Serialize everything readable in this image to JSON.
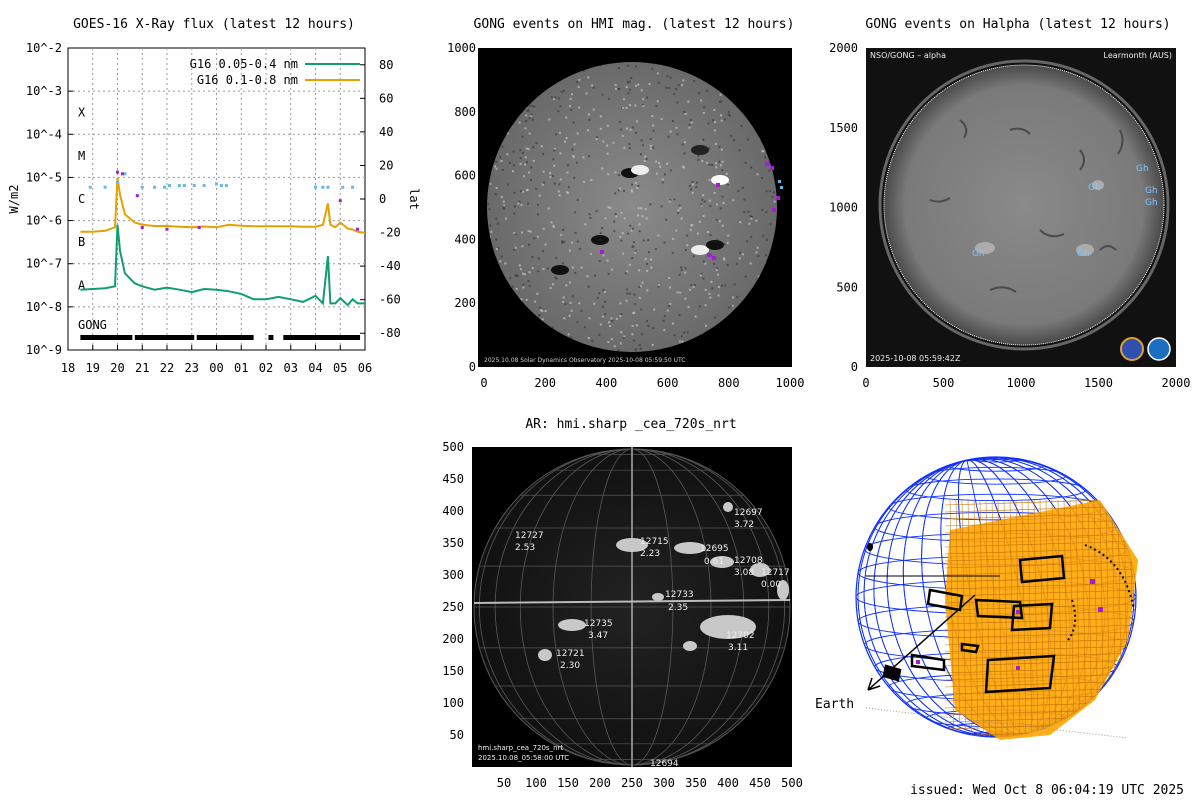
{
  "issued": "issued: Wed Oct  8 06:04:19 UTC 2025",
  "colors": {
    "series1": "#109e70",
    "series2": "#e8a000",
    "event_cyan": "#66b8e8",
    "event_purple": "#a020d0",
    "grid_sphere": "#1030ff",
    "patch": "#ffa500"
  },
  "xray": {
    "title": "GOES-16 X-Ray flux (latest 12 hours)",
    "ylabel": "W/m2",
    "y2label": "lat",
    "flare_classes": [
      "X",
      "M",
      "C",
      "B",
      "A"
    ],
    "gong_label": "GONG",
    "legend": [
      "G16 0.05-0.4 nm",
      "G16 0.1-0.8 nm"
    ]
  },
  "hmi": {
    "title": "GONG events on HMI mag. (latest 12 hours)",
    "caption": "2025.10.08 Solar Dynamics Observatory  2025-10-08 05:59:50 UTC"
  },
  "halpha": {
    "title": "GONG events on Halpha (latest 12 hours)",
    "header_left": "NSO/GONG – alpha",
    "header_right": "Learmonth (AUS)",
    "footer": "2025-10-08 05:59:42Z",
    "labels": [
      "Gh",
      "Gh",
      "Gh",
      "Gh",
      "Gh",
      "Gh"
    ]
  },
  "ar": {
    "title": "AR: hmi.sharp _cea_720s_nrt",
    "caption1": "hmi.sharp_cea_720s_nrt",
    "caption2": "2025.10.08_05:58:00 UTC",
    "regions": [
      {
        "num": "12727",
        "val": "2.53"
      },
      {
        "num": "12715",
        "val": "2.23"
      },
      {
        "num": "12695",
        "val": "0.61"
      },
      {
        "num": "12708",
        "val": "3.08"
      },
      {
        "num": "12717",
        "val": "0.00"
      },
      {
        "num": "12697",
        "val": "3.72"
      },
      {
        "num": "12733",
        "val": "2.35"
      },
      {
        "num": "12735",
        "val": "3.47"
      },
      {
        "num": "12721",
        "val": "2.30"
      },
      {
        "num": "12702",
        "val": "3.11"
      },
      {
        "num": "12694",
        "val": ""
      }
    ]
  },
  "sphere": {
    "earth_label": "Earth"
  },
  "chart_data": [
    {
      "type": "line",
      "title": "GOES-16 X-Ray flux (latest 12 hours)",
      "ylabel": "W/m2",
      "y_scale": "log",
      "ylim": [
        1e-09,
        0.01
      ],
      "y_ticks": [
        "10^-9",
        "10^-8",
        "10^-7",
        "10^-6",
        "10^-5",
        "10^-4",
        "10^-3",
        "10^-2"
      ],
      "y2label": "lat",
      "y2lim": [
        -90,
        90
      ],
      "y2_ticks": [
        -80,
        -60,
        -40,
        -20,
        0,
        20,
        40,
        60,
        80
      ],
      "x_ticks": [
        "18",
        "19",
        "20",
        "21",
        "22",
        "23",
        "00",
        "01",
        "02",
        "03",
        "04",
        "05",
        "06"
      ],
      "legend": "top-right",
      "grid": true,
      "series": [
        {
          "name": "G16 0.05-0.4 nm",
          "x": [
            18.5,
            19.0,
            19.5,
            19.9,
            20.0,
            20.1,
            20.3,
            20.7,
            21.0,
            21.5,
            22.0,
            22.5,
            23.0,
            23.5,
            24.0,
            24.5,
            25.0,
            25.5,
            26.0,
            26.5,
            27.0,
            27.5,
            28.0,
            28.3,
            28.5,
            28.6,
            28.8,
            29.0,
            29.3,
            29.5,
            29.7,
            30.0
          ],
          "y": [
            2.5e-08,
            2.6e-08,
            2.7e-08,
            3e-08,
            8e-07,
            2e-07,
            6e-08,
            3.5e-08,
            3e-08,
            2.5e-08,
            2.8e-08,
            2.5e-08,
            2.2e-08,
            2.6e-08,
            2.5e-08,
            2.3e-08,
            2e-08,
            1.5e-08,
            1.5e-08,
            1.7e-08,
            1.5e-08,
            1.3e-08,
            1.8e-08,
            1.2e-08,
            1.5e-07,
            1.2e-08,
            1.2e-08,
            1.6e-08,
            1.1e-08,
            1.5e-08,
            1.2e-08,
            1.2e-08
          ]
        },
        {
          "name": "G16 0.1-0.8 nm",
          "x": [
            18.5,
            19.0,
            19.5,
            19.9,
            20.0,
            20.1,
            20.3,
            20.7,
            21.0,
            21.5,
            22.0,
            22.5,
            23.0,
            23.5,
            24.0,
            24.5,
            25.0,
            25.5,
            26.0,
            26.5,
            27.0,
            27.5,
            28.0,
            28.3,
            28.5,
            28.6,
            28.8,
            29.0,
            29.3,
            29.5,
            29.7,
            30.0
          ],
          "y": [
            5.5e-07,
            5.5e-07,
            5.8e-07,
            7e-07,
            1e-05,
            4e-06,
            1.4e-06,
            9e-07,
            8e-07,
            7.5e-07,
            7.5e-07,
            7.2e-07,
            7e-07,
            7.3e-07,
            7e-07,
            8e-07,
            7.6e-07,
            7.4e-07,
            7.4e-07,
            7.4e-07,
            7.4e-07,
            7.2e-07,
            7.2e-07,
            8e-07,
            2.5e-06,
            8e-07,
            7e-07,
            9e-07,
            6.5e-07,
            6.2e-07,
            5.5e-07,
            5.2e-07
          ]
        }
      ],
      "event_markers": [
        {
          "x": 18.9,
          "lat": 7
        },
        {
          "x": 19.5,
          "lat": 7
        },
        {
          "x": 20.0,
          "lat": 10
        },
        {
          "x": 20.3,
          "lat": 15
        },
        {
          "x": 21.0,
          "lat": 7
        },
        {
          "x": 21.5,
          "lat": 7
        },
        {
          "x": 21.9,
          "lat": 7
        },
        {
          "x": 22.1,
          "lat": 8
        },
        {
          "x": 22.5,
          "lat": 8
        },
        {
          "x": 22.7,
          "lat": 8
        },
        {
          "x": 23.1,
          "lat": 8
        },
        {
          "x": 23.5,
          "lat": 8
        },
        {
          "x": 24.0,
          "lat": 9
        },
        {
          "x": 24.2,
          "lat": 8
        },
        {
          "x": 24.4,
          "lat": 8
        },
        {
          "x": 28.0,
          "lat": 7
        },
        {
          "x": 28.3,
          "lat": 7
        },
        {
          "x": 28.5,
          "lat": 7
        },
        {
          "x": 29.1,
          "lat": 7
        },
        {
          "x": 29.5,
          "lat": 7
        }
      ],
      "event_markers_purple": [
        {
          "x": 20.0,
          "lat": 16
        },
        {
          "x": 20.2,
          "lat": 15
        },
        {
          "x": 20.8,
          "lat": 2
        },
        {
          "x": 21.0,
          "lat": -17
        },
        {
          "x": 22.0,
          "lat": -18
        },
        {
          "x": 23.3,
          "lat": -17
        },
        {
          "x": 29.0,
          "lat": -1
        },
        {
          "x": 29.7,
          "lat": -18
        }
      ],
      "gong_bar": [
        [
          18.5,
          20.6
        ],
        [
          20.7,
          23.1
        ],
        [
          23.2,
          25.5
        ],
        [
          26.1,
          26.3
        ],
        [
          26.7,
          29.8
        ]
      ]
    }
  ]
}
